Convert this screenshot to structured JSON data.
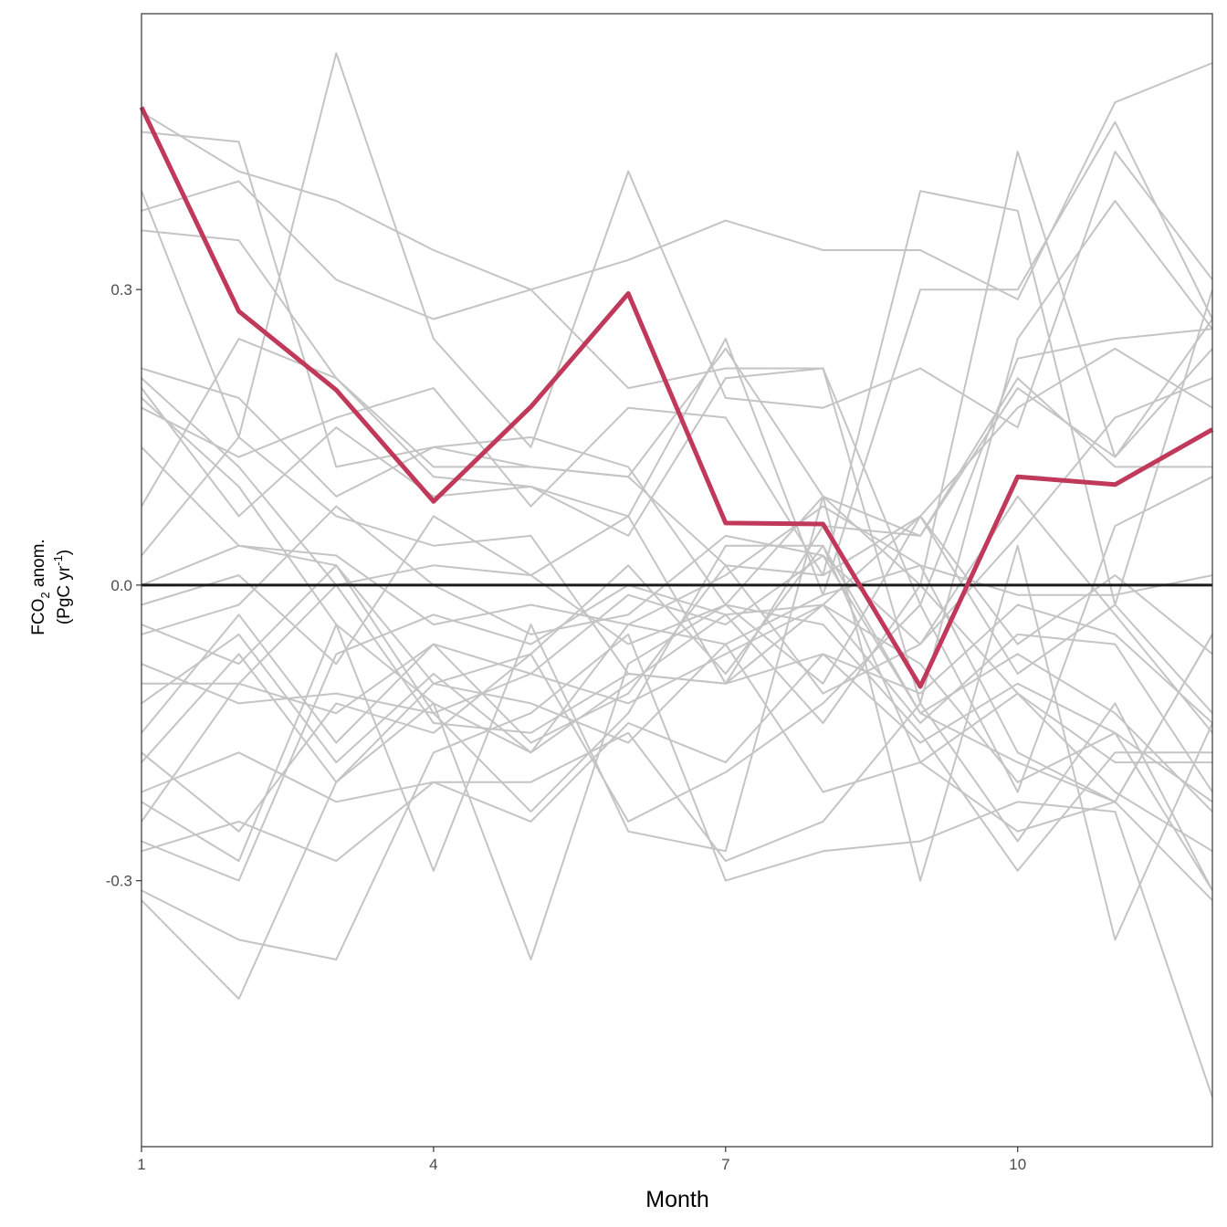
{
  "chart_data": {
    "type": "line",
    "title": "",
    "xlabel": "Month",
    "ylabel": {
      "line1_prefix": "FCO",
      "line1_sub": "2",
      "line1_suffix": " anom.",
      "line2_prefix": "(PgC yr",
      "line2_sup": "-1",
      "line2_suffix": ")"
    },
    "xlim": [
      1,
      12
    ],
    "ylim": [
      -0.57,
      0.58
    ],
    "x_ticks": [
      1,
      4,
      7,
      10
    ],
    "x_tick_labels": [
      "1",
      "4",
      "7",
      "10"
    ],
    "y_ticks": [
      -0.3,
      0.0,
      0.3
    ],
    "y_tick_labels": [
      "-0.3",
      "0.0",
      "0.3"
    ],
    "reference_line": {
      "y": 0.0,
      "color": "#1a1a1a"
    },
    "grid": false,
    "x": [
      1,
      2,
      3,
      4,
      5,
      6,
      7,
      8,
      9,
      10,
      11,
      12
    ],
    "highlight": {
      "color": "#c0395a",
      "values": [
        0.485,
        0.278,
        0.198,
        0.085,
        0.181,
        0.296,
        0.063,
        0.062,
        -0.103,
        0.11,
        0.102,
        0.158
      ]
    },
    "ensemble_color": "#c4c4c4",
    "ensemble": [
      {
        "values": [
          0.48,
          0.42,
          0.39,
          0.34,
          0.3,
          0.2,
          0.22,
          0.22,
          -0.02,
          0.23,
          0.25,
          0.26
        ]
      },
      {
        "values": [
          0.38,
          0.41,
          0.31,
          0.27,
          0.3,
          0.33,
          0.37,
          0.34,
          0.34,
          0.29,
          0.49,
          0.53
        ]
      },
      {
        "values": [
          0.46,
          0.45,
          0.12,
          0.14,
          0.12,
          0.11,
          0.02,
          0.01,
          0.4,
          0.38,
          -0.02,
          0.3
        ]
      },
      {
        "values": [
          0.36,
          0.35,
          0.21,
          0.11,
          0.1,
          0.07,
          0.25,
          -0.01,
          0.3,
          0.3,
          0.47,
          0.27
        ]
      },
      {
        "values": [
          0.4,
          0.15,
          0.54,
          0.25,
          0.14,
          0.42,
          0.19,
          0.18,
          0.22,
          0.16,
          0.44,
          0.31
        ]
      },
      {
        "values": [
          0.22,
          0.19,
          0.09,
          0.14,
          0.15,
          0.12,
          -0.02,
          0.09,
          0.0,
          0.44,
          0.13,
          0.24
        ]
      },
      {
        "values": [
          0.18,
          0.13,
          0.17,
          0.2,
          0.08,
          0.18,
          0.17,
          0.01,
          0.07,
          0.18,
          0.24,
          0.18
        ]
      },
      {
        "values": [
          0.2,
          0.07,
          0.16,
          0.09,
          0.1,
          0.05,
          0.21,
          0.22,
          -0.12,
          0.25,
          0.39,
          0.26
        ]
      },
      {
        "values": [
          0.08,
          0.25,
          0.21,
          0.12,
          0.12,
          0.11,
          0.24,
          0.09,
          0.05,
          0.21,
          0.12,
          0.12
        ]
      },
      {
        "values": [
          0.03,
          0.15,
          0.07,
          0.04,
          0.05,
          -0.09,
          -0.1,
          0.06,
          0.05,
          0.2,
          0.13,
          0.27
        ]
      },
      {
        "values": [
          0.0,
          0.04,
          0.03,
          -0.04,
          -0.02,
          -0.04,
          0.01,
          0.08,
          0.02,
          -0.01,
          -0.01,
          0.01
        ]
      },
      {
        "values": [
          -0.02,
          0.01,
          -0.08,
          0.07,
          0.01,
          -0.06,
          -0.02,
          -0.1,
          0.07,
          -0.06,
          0.01,
          -0.07
        ]
      },
      {
        "values": [
          -0.05,
          -0.02,
          0.08,
          0.0,
          -0.05,
          -0.03,
          0.05,
          0.03,
          -0.06,
          0.09,
          -0.03,
          -0.15
        ]
      },
      {
        "values": [
          -0.1,
          -0.1,
          0.0,
          -0.14,
          -0.15,
          -0.09,
          -0.1,
          -0.07,
          -0.11,
          -0.02,
          -0.05,
          -0.14
        ]
      },
      {
        "values": [
          -0.15,
          -0.03,
          -0.16,
          -0.06,
          -0.09,
          -0.01,
          -0.04,
          0.03,
          -0.13,
          -0.07,
          -0.13,
          -0.23
        ]
      },
      {
        "values": [
          -0.18,
          -0.07,
          -0.2,
          -0.1,
          -0.12,
          -0.16,
          -0.06,
          -0.01,
          0.02,
          -0.17,
          -0.22,
          -0.32
        ]
      },
      {
        "values": [
          -0.22,
          -0.28,
          -0.04,
          -0.29,
          -0.04,
          -0.25,
          -0.27,
          0.09,
          -0.3,
          0.04,
          -0.36,
          -0.14
        ]
      },
      {
        "values": [
          -0.27,
          -0.24,
          -0.28,
          -0.2,
          -0.2,
          -0.15,
          -0.28,
          -0.24,
          -0.12,
          -0.26,
          -0.12,
          -0.31
        ]
      },
      {
        "values": [
          -0.32,
          -0.42,
          -0.2,
          -0.12,
          -0.38,
          -0.08,
          -0.02,
          -0.04,
          -0.15,
          -0.29,
          -0.17,
          -0.17
        ]
      },
      {
        "values": [
          -0.31,
          -0.36,
          -0.38,
          -0.17,
          -0.13,
          -0.05,
          -0.3,
          -0.27,
          -0.26,
          -0.22,
          -0.23,
          -0.52
        ]
      },
      {
        "values": [
          -0.21,
          -0.17,
          -0.22,
          -0.2,
          -0.24,
          -0.14,
          -0.18,
          -0.07,
          -0.16,
          -0.1,
          -0.15,
          -0.22
        ]
      },
      {
        "values": [
          -0.12,
          -0.05,
          -0.18,
          -0.09,
          -0.17,
          -0.1,
          -0.03,
          -0.02,
          0.07,
          -0.09,
          -0.02,
          -0.13
        ]
      },
      {
        "values": [
          -0.08,
          -0.12,
          -0.11,
          -0.13,
          -0.09,
          -0.12,
          -0.07,
          -0.02,
          -0.14,
          -0.05,
          -0.06,
          -0.21
        ]
      },
      {
        "values": [
          0.14,
          0.04,
          0.02,
          -0.1,
          -0.07,
          0.02,
          -0.09,
          0.04,
          -0.18,
          -0.11,
          -0.21,
          -0.27
        ]
      },
      {
        "values": [
          0.21,
          0.12,
          0.0,
          0.02,
          0.01,
          0.07,
          -0.1,
          -0.02,
          -0.08,
          -0.2,
          -0.15,
          -0.31
        ]
      },
      {
        "values": [
          0.19,
          0.1,
          -0.04,
          -0.12,
          -0.17,
          -0.04,
          -0.06,
          -0.21,
          -0.18,
          -0.25,
          -0.22,
          -0.05
        ]
      },
      {
        "values": [
          -0.26,
          -0.3,
          -0.07,
          -0.03,
          -0.06,
          0.0,
          -0.03,
          -0.14,
          0.0,
          -0.11,
          -0.18,
          -0.18
        ]
      },
      {
        "values": [
          -0.17,
          -0.25,
          -0.12,
          -0.15,
          -0.07,
          -0.24,
          -0.19,
          -0.12,
          -0.02,
          -0.21,
          0.06,
          0.11
        ]
      },
      {
        "values": [
          -0.24,
          -0.1,
          -0.13,
          -0.06,
          -0.16,
          -0.11,
          0.02,
          -0.11,
          -0.06,
          0.05,
          0.17,
          0.21
        ]
      },
      {
        "values": [
          -0.04,
          -0.08,
          0.02,
          -0.13,
          -0.23,
          -0.13,
          0.04,
          0.04,
          -0.13,
          -0.18,
          -0.22,
          -0.05
        ]
      }
    ]
  }
}
